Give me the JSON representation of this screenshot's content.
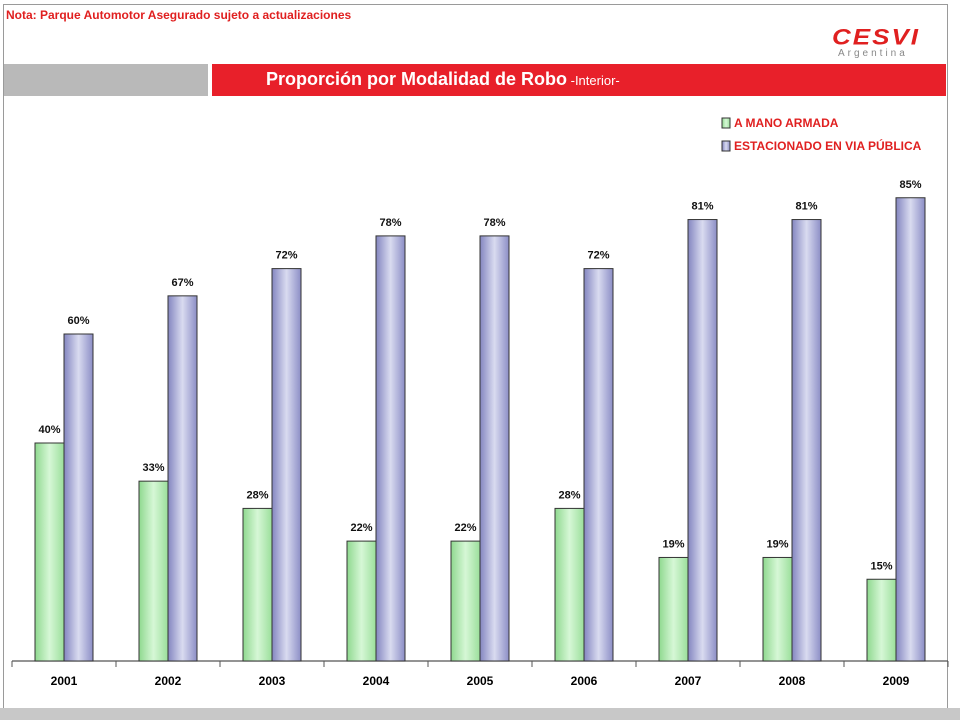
{
  "header": {
    "note": "Nota: Parque Automotor Asegurado sujeto a actualizaciones",
    "logo_main": "CESVI",
    "logo_sub": "Argentina",
    "title_main": "Proporción por Modalidad de Robo",
    "title_suffix": " -Interior-",
    "colors": {
      "accent_red": "#e8202a",
      "band_grey": "#b9b9b9"
    }
  },
  "chart_data": {
    "type": "bar",
    "categories": [
      "2001",
      "2002",
      "2003",
      "2004",
      "2005",
      "2006",
      "2007",
      "2008",
      "2009"
    ],
    "series": [
      {
        "name": "A MANO ARMADA",
        "color": "#b8ecb8",
        "values": [
          40,
          33,
          28,
          22,
          22,
          28,
          19,
          19,
          15
        ],
        "labels": [
          "40%",
          "33%",
          "28%",
          "22%",
          "22%",
          "28%",
          "19%",
          "19%",
          "15%"
        ]
      },
      {
        "name": "ESTACIONADO EN VIA PÚBLICA",
        "color": "#a9abd6",
        "values": [
          60,
          67,
          72,
          78,
          78,
          72,
          81,
          81,
          85
        ],
        "labels": [
          "60%",
          "67%",
          "72%",
          "78%",
          "78%",
          "72%",
          "81%",
          "81%",
          "85%"
        ]
      }
    ],
    "ylim": [
      0,
      100
    ],
    "grid": false,
    "legend_position": "top-right"
  }
}
